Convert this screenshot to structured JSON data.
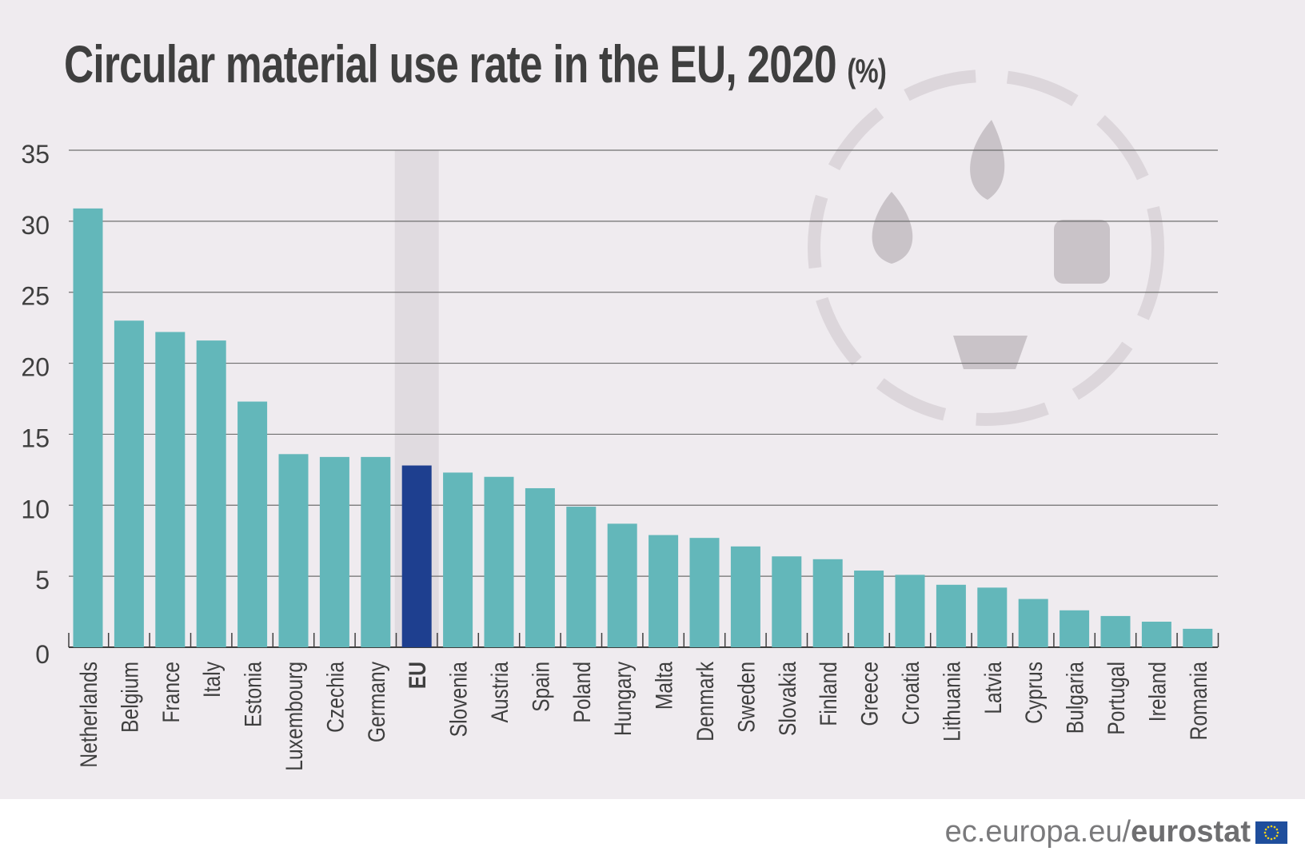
{
  "title": "Circular material use rate in the EU, 2020",
  "title_unit": "(%)",
  "footer": {
    "url_prefix": "ec.europa.eu/",
    "url_brand": "eurostat"
  },
  "colors": {
    "bar": "#63b7ba",
    "highlight_bar": "#1e3f8f",
    "highlight_band": "#e0dbe0",
    "background": "#efebef"
  },
  "chart_data": {
    "type": "bar",
    "title": "Circular material use rate in the EU, 2020 (%)",
    "categories": [
      "Netherlands",
      "Belgium",
      "France",
      "Italy",
      "Estonia",
      "Luxembourg",
      "Czechia",
      "Germany",
      "EU",
      "Slovenia",
      "Austria",
      "Spain",
      "Poland",
      "Hungary",
      "Malta",
      "Denmark",
      "Sweden",
      "Slovakia",
      "Finland",
      "Greece",
      "Croatia",
      "Lithuania",
      "Latvia",
      "Cyprus",
      "Bulgaria",
      "Portugal",
      "Ireland",
      "Romania"
    ],
    "values": [
      30.9,
      23.0,
      22.2,
      21.6,
      17.3,
      13.6,
      13.4,
      13.4,
      12.8,
      12.3,
      12.0,
      11.2,
      9.9,
      8.7,
      7.9,
      7.7,
      7.1,
      6.4,
      6.2,
      5.4,
      5.1,
      4.4,
      4.2,
      3.4,
      2.6,
      2.2,
      1.8,
      1.3
    ],
    "highlight": "EU",
    "ylim": [
      0,
      35
    ],
    "yticks": [
      0,
      5,
      10,
      15,
      20,
      25,
      30,
      35
    ],
    "grid": true
  }
}
